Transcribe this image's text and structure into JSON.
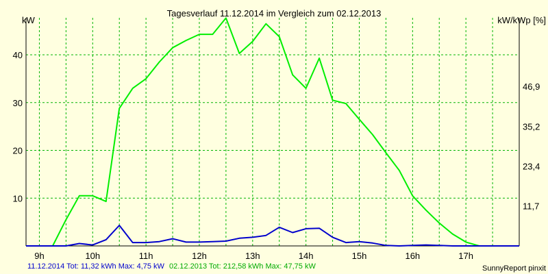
{
  "colors": {
    "background": "#ffffe0",
    "grid": "#00b400",
    "series_2014": "#0000cc",
    "series_2013": "#00ee00",
    "footer_2014": "#0000cc",
    "footer_2013": "#00aa00"
  },
  "chart_data": {
    "type": "line",
    "title": "Tagesverlauf 11.12.2014 im Vergleich zum 02.12.2013",
    "ylabel_left": "kW",
    "ylabel_right": "kW/kWp [%]",
    "xlim": [
      8.75,
      18.0
    ],
    "ylim": [
      0,
      47.75
    ],
    "x_ticks": [
      9,
      10,
      11,
      12,
      13,
      14,
      15,
      16,
      17
    ],
    "x_tick_labels": [
      "9h",
      "10h",
      "11h",
      "12h",
      "13h",
      "14h",
      "15h",
      "16h",
      "17h"
    ],
    "y_ticks_left": [
      10,
      20,
      30,
      40
    ],
    "y_tick_labels_left": [
      "10",
      "20",
      "30",
      "40"
    ],
    "y_ticks_right_values": [
      8.4,
      16.7,
      25.0,
      33.4
    ],
    "y_tick_labels_right": [
      "11,7",
      "23,4",
      "35,2",
      "46,9"
    ],
    "x_grid": [
      9,
      9.5,
      10,
      10.5,
      11,
      11.5,
      12,
      12.5,
      13,
      13.5,
      14,
      14.5,
      15,
      15.5,
      16,
      16.5,
      17,
      17.5
    ],
    "y_grid": [
      10,
      20,
      30,
      40
    ],
    "series": [
      {
        "name": "02.12.2013",
        "x": [
          8.75,
          9.0,
          9.25,
          9.5,
          9.75,
          10.0,
          10.25,
          10.5,
          10.75,
          11.0,
          11.25,
          11.5,
          11.75,
          12.0,
          12.25,
          12.5,
          12.75,
          13.0,
          13.25,
          13.5,
          13.75,
          14.0,
          14.25,
          14.5,
          14.75,
          15.0,
          15.25,
          15.5,
          15.75,
          16.0,
          16.25,
          16.5,
          16.75,
          17.0,
          17.25,
          17.5,
          17.75,
          18.0
        ],
        "y": [
          0,
          0,
          0,
          5.5,
          10.5,
          10.5,
          9.3,
          28.8,
          33.0,
          35.0,
          38.5,
          41.5,
          43.0,
          44.3,
          44.3,
          47.7,
          40.3,
          42.8,
          46.5,
          43.8,
          35.8,
          33.0,
          39.3,
          30.5,
          29.8,
          26.5,
          23.3,
          19.5,
          15.8,
          10.5,
          7.5,
          4.8,
          2.5,
          0.8,
          0,
          0,
          0,
          0
        ]
      },
      {
        "name": "11.12.2014",
        "x": [
          8.75,
          9.0,
          9.25,
          9.5,
          9.75,
          10.0,
          10.25,
          10.5,
          10.75,
          11.0,
          11.25,
          11.5,
          11.75,
          12.0,
          12.25,
          12.5,
          12.75,
          13.0,
          13.25,
          13.5,
          13.75,
          14.0,
          14.25,
          14.5,
          14.75,
          15.0,
          15.25,
          15.5,
          15.75,
          16.0,
          16.25,
          16.5,
          16.75,
          17.0,
          17.25,
          17.5,
          17.75,
          18.0
        ],
        "y": [
          0,
          0,
          0,
          0,
          0.5,
          0.2,
          1.3,
          4.3,
          0.7,
          0.7,
          0.9,
          1.5,
          0.8,
          0.8,
          0.9,
          1.0,
          1.6,
          1.8,
          2.2,
          3.9,
          2.8,
          3.6,
          3.7,
          1.8,
          0.7,
          0.9,
          0.6,
          0.1,
          0,
          0.1,
          0.2,
          0.1,
          0,
          0,
          0,
          0,
          0,
          0
        ]
      }
    ]
  },
  "footer": {
    "series_2014": "11.12.2014 Tot: 11,32 kWh Max: 4,75 kW",
    "series_2013": "02.12.2013 Tot: 212,58 kWh Max: 47,75 kW",
    "credit": "SunnyReport pinxit"
  }
}
